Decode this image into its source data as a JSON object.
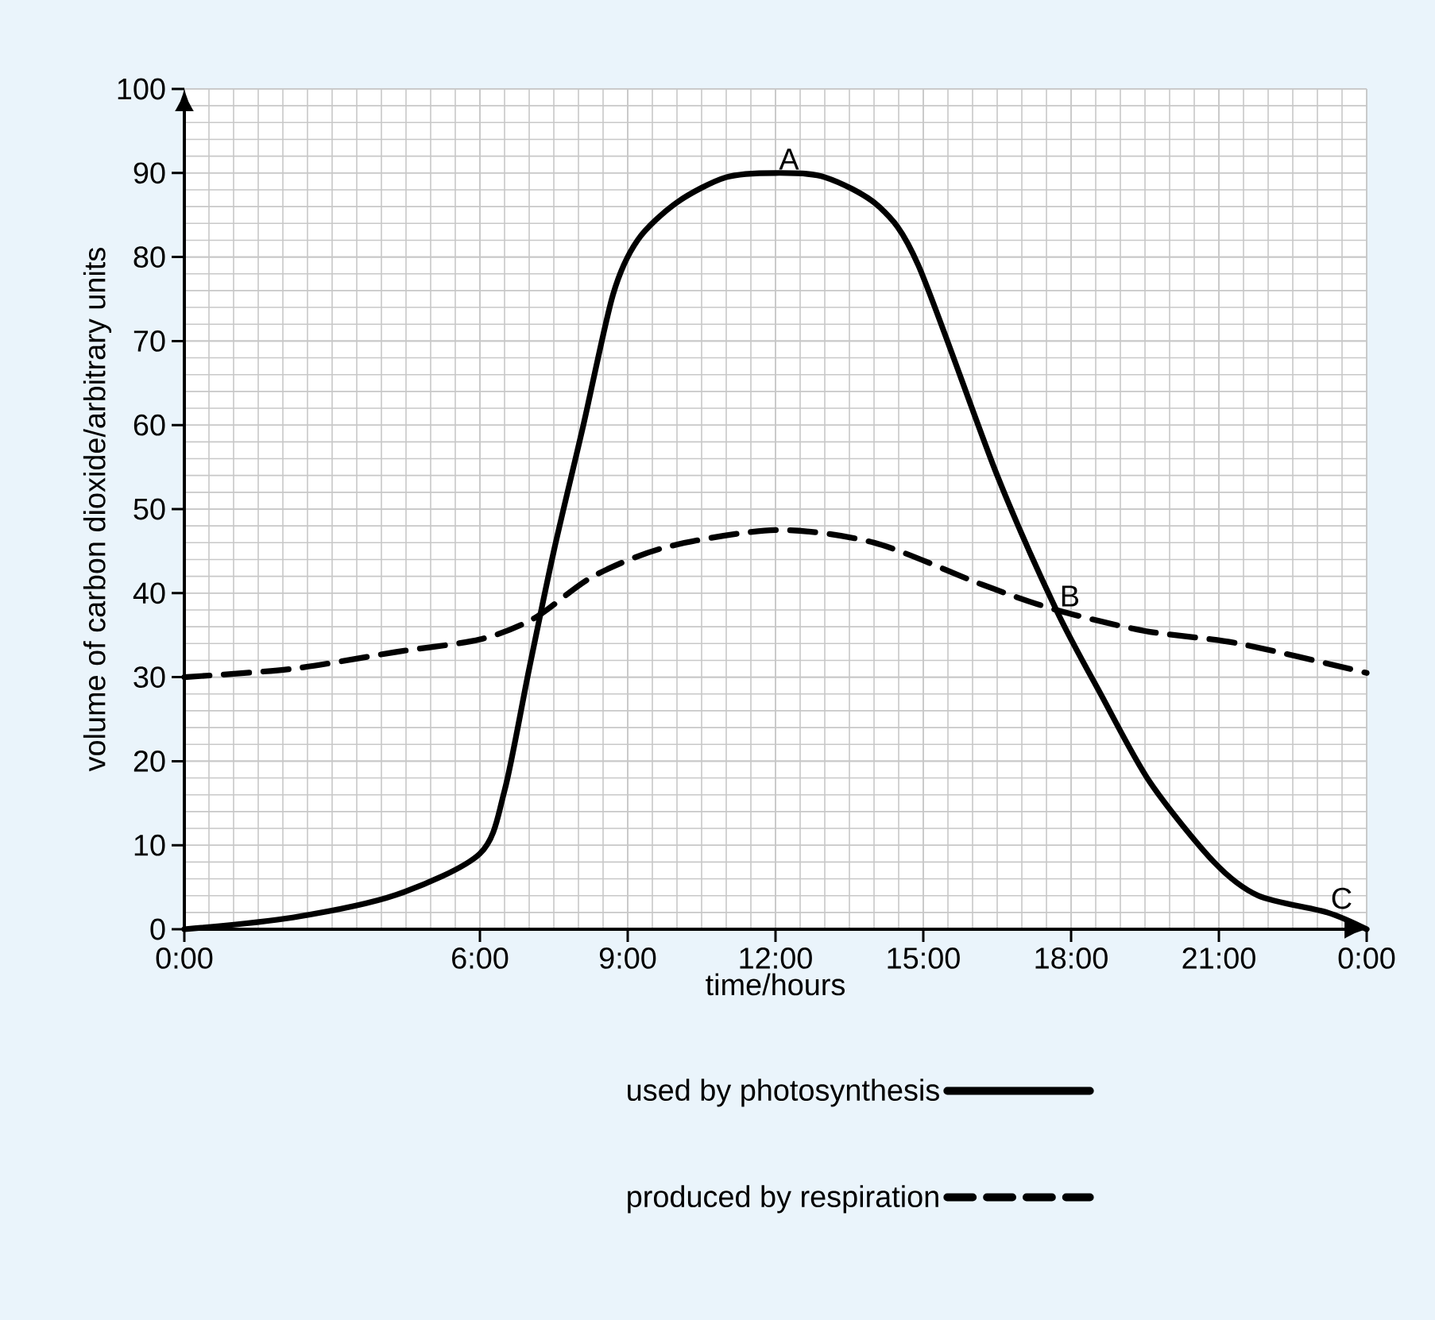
{
  "chart_data": {
    "type": "line",
    "xlabel": "time/hours",
    "ylabel": "volume of carbon dioxide/arbitrary units",
    "xlim": [
      0,
      24
    ],
    "ylim": [
      0,
      100
    ],
    "xticks": [
      {
        "value": 0,
        "label": "0:00"
      },
      {
        "value": 6,
        "label": "6:00"
      },
      {
        "value": 9,
        "label": "9:00"
      },
      {
        "value": 12,
        "label": "12:00"
      },
      {
        "value": 15,
        "label": "15:00"
      },
      {
        "value": 18,
        "label": "18:00"
      },
      {
        "value": 21,
        "label": "21:00"
      },
      {
        "value": 24,
        "label": "0:00"
      }
    ],
    "yticks": [
      0,
      10,
      20,
      30,
      40,
      50,
      60,
      70,
      80,
      90,
      100
    ],
    "grid": true,
    "legend": "bottom",
    "series": [
      {
        "name": "used by photosynthesis",
        "color": "#000000",
        "line_style": "solid",
        "x": [
          0,
          2.2,
          4.3,
          6,
          6.5,
          7,
          7.5,
          8.1,
          8.7,
          9.2,
          10,
          11,
          12,
          13,
          14.1,
          14.9,
          16.5,
          17.7,
          18.6,
          19.6,
          20.9,
          21.8,
          23.2,
          24
        ],
        "values": [
          0,
          1.4,
          4.1,
          9,
          16.5,
          31,
          45,
          60,
          75.5,
          82,
          86.5,
          89.5,
          90,
          89.5,
          86,
          79,
          54,
          38,
          28,
          17.5,
          8,
          4,
          2,
          0
        ]
      },
      {
        "name": "produced by respiration",
        "color": "#000000",
        "line_style": "dashed",
        "x": [
          0,
          2.2,
          4.3,
          6,
          7.1,
          8.3,
          9.8,
          12,
          14,
          16.2,
          17.7,
          19.5,
          21.4,
          24
        ],
        "values": [
          30,
          31,
          33,
          34.5,
          37,
          42,
          45.5,
          47.5,
          46,
          41,
          38,
          35.5,
          34,
          30.5
        ]
      }
    ],
    "annotations": [
      {
        "text": "A",
        "x": 12,
        "y": 90
      },
      {
        "text": "B",
        "x": 17.7,
        "y": 38
      },
      {
        "text": "C",
        "x": 23.2,
        "y": 2
      }
    ]
  }
}
